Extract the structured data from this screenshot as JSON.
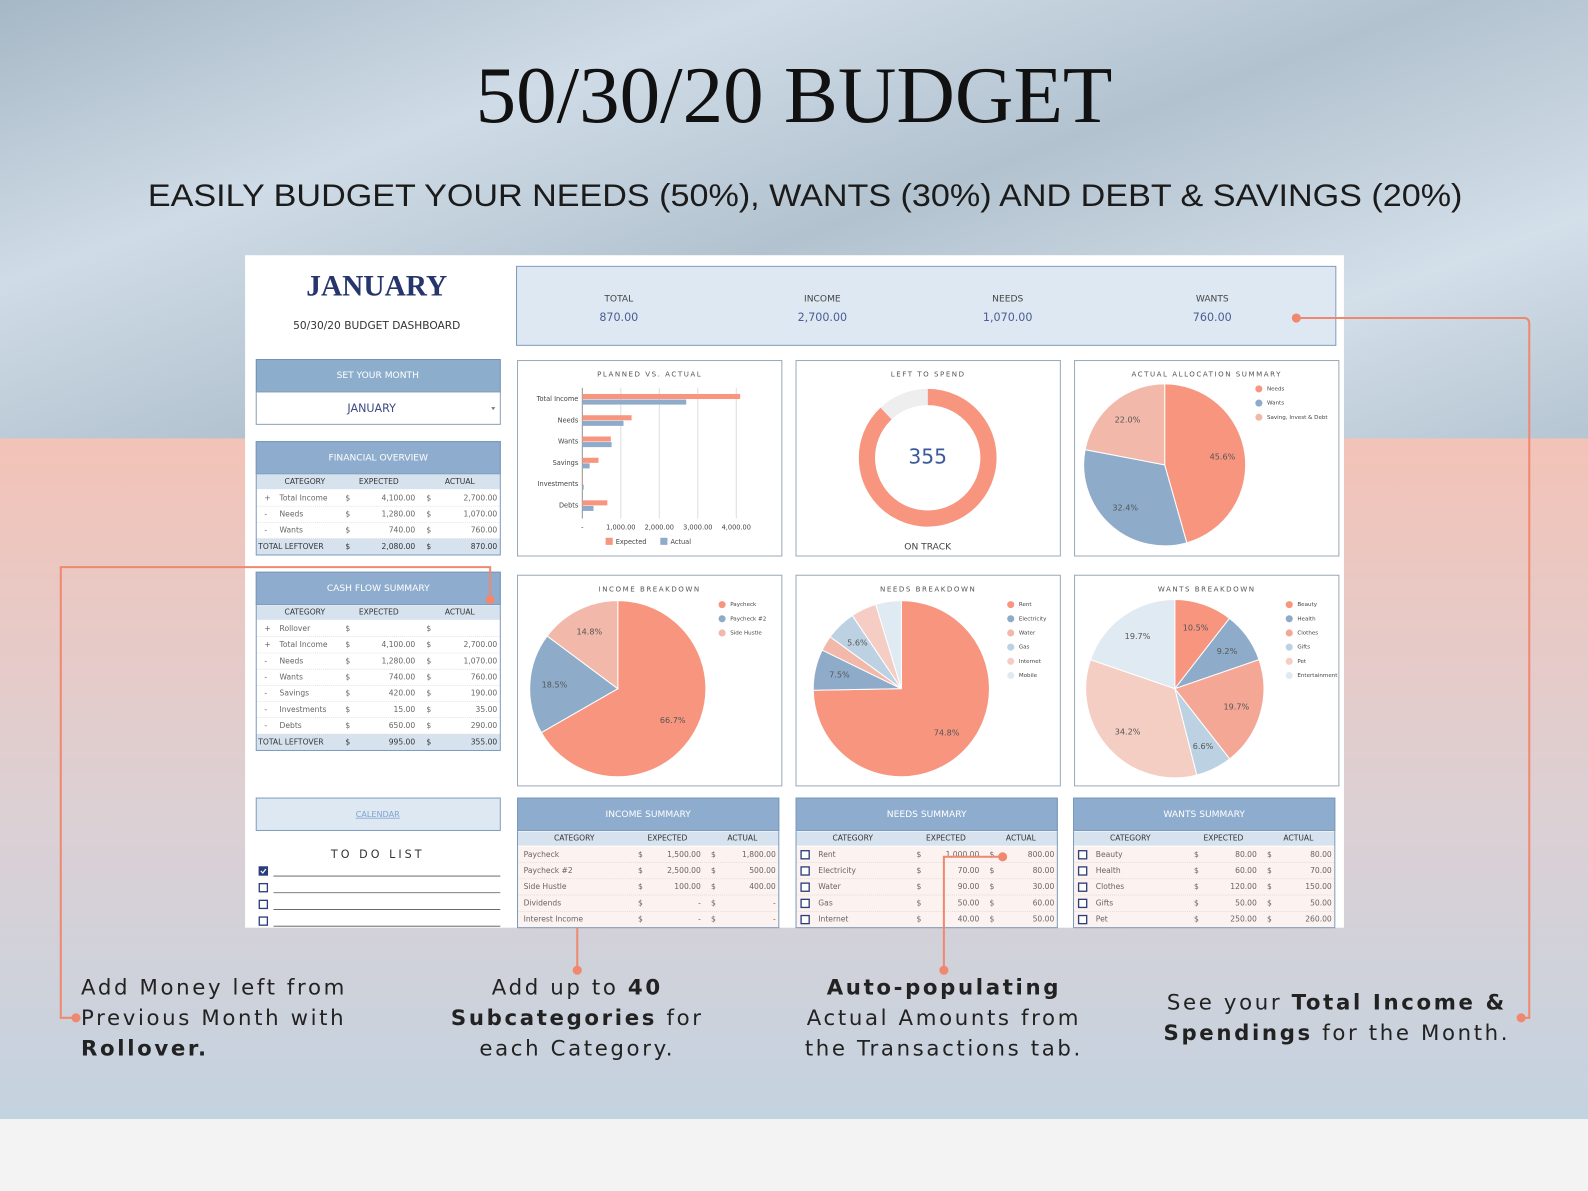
{
  "header": {
    "title": "50/30/20 BUDGET",
    "subtitle": "EASILY BUDGET YOUR NEEDS (50%), WANTS (30%) AND DEBT & SAVINGS (20%)"
  },
  "dashboard": {
    "month_title": "JANUARY",
    "subtitle": "50/30/20 BUDGET DASHBOARD",
    "set_month": {
      "title": "SET YOUR MONTH",
      "value": "JANUARY"
    },
    "kpis": [
      {
        "label": "TOTAL",
        "value": "870.00"
      },
      {
        "label": "INCOME",
        "value": "2,700.00"
      },
      {
        "label": "NEEDS",
        "value": "1,070.00"
      },
      {
        "label": "WANTS",
        "value": "760.00"
      }
    ],
    "financial_overview": {
      "title": "FINANCIAL OVERVIEW",
      "columns": [
        "CATEGORY",
        "EXPECTED",
        "ACTUAL"
      ],
      "rows": [
        {
          "sign": "+",
          "category": "Total Income",
          "exp_cur": "$",
          "expected": "4,100.00",
          "act_cur": "$",
          "actual": "2,700.00"
        },
        {
          "sign": "-",
          "category": "Needs",
          "exp_cur": "$",
          "expected": "1,280.00",
          "act_cur": "$",
          "actual": "1,070.00"
        },
        {
          "sign": "-",
          "category": "Wants",
          "exp_cur": "$",
          "expected": "740.00",
          "act_cur": "$",
          "actual": "760.00"
        }
      ],
      "total": {
        "label": "TOTAL LEFTOVER",
        "exp_cur": "$",
        "expected": "2,080.00",
        "act_cur": "$",
        "actual": "870.00"
      }
    },
    "cash_flow_summary": {
      "title": "CASH FLOW SUMMARY",
      "columns": [
        "CATEGORY",
        "EXPECTED",
        "ACTUAL"
      ],
      "rows": [
        {
          "sign": "+",
          "category": "Rollover",
          "exp_cur": "$",
          "act_cur": "$"
        },
        {
          "sign": "+",
          "category": "Total Income",
          "exp_cur": "$",
          "expected": "4,100.00",
          "act_cur": "$",
          "actual": "2,700.00"
        },
        {
          "sign": "-",
          "category": "Needs",
          "exp_cur": "$",
          "expected": "1,280.00",
          "act_cur": "$",
          "actual": "1,070.00"
        },
        {
          "sign": "-",
          "category": "Wants",
          "exp_cur": "$",
          "expected": "740.00",
          "act_cur": "$",
          "actual": "760.00"
        },
        {
          "sign": "-",
          "category": "Savings",
          "exp_cur": "$",
          "expected": "420.00",
          "act_cur": "$",
          "actual": "190.00"
        },
        {
          "sign": "-",
          "category": "Investments",
          "exp_cur": "$",
          "expected": "15.00",
          "act_cur": "$",
          "actual": "35.00"
        },
        {
          "sign": "-",
          "category": "Debts",
          "exp_cur": "$",
          "expected": "650.00",
          "act_cur": "$",
          "actual": "290.00"
        }
      ],
      "total": {
        "label": "TOTAL LEFTOVER",
        "exp_cur": "$",
        "expected": "995.00",
        "act_cur": "$",
        "actual": "355.00"
      }
    },
    "calendar": "CALENDAR",
    "todo": {
      "title": "TO DO LIST",
      "checked": [
        true,
        false,
        false,
        false
      ]
    },
    "summaries": [
      {
        "title": "INCOME SUMMARY",
        "columns": [
          "CATEGORY",
          "EXPECTED",
          "ACTUAL"
        ],
        "checkboxes": false,
        "rows": [
          {
            "category": "Paycheck",
            "exp_cur": "$",
            "expected": "1,500.00",
            "act_cur": "$",
            "actual": "1,800.00"
          },
          {
            "category": "Paycheck #2",
            "exp_cur": "$",
            "expected": "2,500.00",
            "act_cur": "$",
            "actual": "500.00"
          },
          {
            "category": "Side Hustle",
            "exp_cur": "$",
            "expected": "100.00",
            "act_cur": "$",
            "actual": "400.00"
          },
          {
            "category": "Dividends",
            "exp_cur": "$",
            "expected": "-",
            "act_cur": "$",
            "actual": "-"
          },
          {
            "category": "Interest Income",
            "exp_cur": "$",
            "expected": "-",
            "act_cur": "$",
            "actual": "-"
          }
        ]
      },
      {
        "title": "NEEDS SUMMARY",
        "columns": [
          "CATEGORY",
          "EXPECTED",
          "ACTUAL"
        ],
        "checkboxes": true,
        "rows": [
          {
            "category": "Rent",
            "exp_cur": "$",
            "expected": "1,000.00",
            "act_cur": "$",
            "actual": "800.00"
          },
          {
            "category": "Electricity",
            "exp_cur": "$",
            "expected": "70.00",
            "act_cur": "$",
            "actual": "80.00"
          },
          {
            "category": "Water",
            "exp_cur": "$",
            "expected": "90.00",
            "act_cur": "$",
            "actual": "30.00"
          },
          {
            "category": "Gas",
            "exp_cur": "$",
            "expected": "50.00",
            "act_cur": "$",
            "actual": "60.00"
          },
          {
            "category": "Internet",
            "exp_cur": "$",
            "expected": "40.00",
            "act_cur": "$",
            "actual": "50.00"
          }
        ]
      },
      {
        "title": "WANTS SUMMARY",
        "columns": [
          "CATEGORY",
          "EXPECTED",
          "ACTUAL"
        ],
        "checkboxes": true,
        "rows": [
          {
            "category": "Beauty",
            "exp_cur": "$",
            "expected": "80.00",
            "act_cur": "$",
            "actual": "80.00"
          },
          {
            "category": "Health",
            "exp_cur": "$",
            "expected": "60.00",
            "act_cur": "$",
            "actual": "70.00"
          },
          {
            "category": "Clothes",
            "exp_cur": "$",
            "expected": "120.00",
            "act_cur": "$",
            "actual": "150.00"
          },
          {
            "category": "Gifts",
            "exp_cur": "$",
            "expected": "50.00",
            "act_cur": "$",
            "actual": "50.00"
          },
          {
            "category": "Pet",
            "exp_cur": "$",
            "expected": "250.00",
            "act_cur": "$",
            "actual": "260.00"
          }
        ]
      }
    ]
  },
  "charts": [
    {
      "type": "bar",
      "title": "PLANNED VS. ACTUAL",
      "categories": [
        "Total Income",
        "Needs",
        "Wants",
        "Savings",
        "Investments",
        "Debts"
      ],
      "series": [
        {
          "name": "Expected",
          "color": "#f7957f",
          "values": [
            4100,
            1280,
            740,
            420,
            15,
            650
          ]
        },
        {
          "name": "Actual",
          "color": "#8eacca",
          "values": [
            2700,
            1070,
            760,
            190,
            35,
            290
          ]
        }
      ],
      "xlim": [
        0,
        4500
      ],
      "xticks": [
        {
          "value": 0,
          "label": "-"
        },
        {
          "value": 1000,
          "label": "1,000.00"
        },
        {
          "value": 2000,
          "label": "2,000.00"
        },
        {
          "value": 3000,
          "label": "3,000.00"
        },
        {
          "value": 4000,
          "label": "4,000.00"
        }
      ],
      "grid": true
    },
    {
      "type": "donut",
      "title": "LEFT TO SPEND",
      "center_value": 355,
      "status": "ON TRACK",
      "values": [
        88,
        12
      ],
      "colors": [
        "#f7957f",
        "#eeeeee"
      ]
    },
    {
      "type": "pie",
      "title": "ACTUAL ALLOCATION SUMMARY",
      "categories": [
        "Needs",
        "Wants",
        "Saving, Invest & Debt"
      ],
      "values": [
        45.6,
        32.4,
        22.0
      ],
      "value_labels": [
        "45.6%",
        "32.4%",
        "22.0%"
      ],
      "colors": [
        "#f7957f",
        "#8eacca",
        "#f2b8aa"
      ]
    },
    {
      "type": "pie",
      "title": "INCOME BREAKDOWN",
      "categories": [
        "Paycheck",
        "Paycheck #2",
        "Side Hustle"
      ],
      "values": [
        66.7,
        18.5,
        14.8
      ],
      "value_labels": [
        "66.7%",
        "18.5%",
        "14.8%"
      ],
      "colors": [
        "#f7957f",
        "#8eacca",
        "#f2b8aa"
      ]
    },
    {
      "type": "pie",
      "title": "NEEDS BREAKDOWN",
      "categories": [
        "Rent",
        "Electricity",
        "Water",
        "Gas",
        "Internet",
        "Mobile"
      ],
      "values": [
        74.8,
        7.5,
        2.8,
        5.6,
        4.7,
        4.7
      ],
      "value_labels": [
        "74.8%",
        "7.5%",
        null,
        "5.6%",
        null,
        null
      ],
      "colors": [
        "#f7957f",
        "#8eacca",
        "#f2b8aa",
        "#bcd2e3",
        "#f5cdc4",
        "#dfeaf3"
      ]
    },
    {
      "type": "pie",
      "title": "WANTS BREAKDOWN",
      "categories": [
        "Beauty",
        "Health",
        "Clothes",
        "Gifts",
        "Pet",
        "Entertainment"
      ],
      "values": [
        10.5,
        9.2,
        19.7,
        6.6,
        34.2,
        19.7
      ],
      "value_labels": [
        "10.5%",
        "9.2%",
        "19.7%",
        "6.6%",
        "34.2%",
        "19.7%"
      ],
      "colors": [
        "#f7957f",
        "#8eacca",
        "#f5a796",
        "#bcd2e3",
        "#f4cdc3",
        "#dfeaf3"
      ]
    }
  ],
  "callouts": [
    {
      "lines": [
        [
          {
            "text": "Add Money left from"
          }
        ],
        [
          {
            "text": "Previous Month with"
          }
        ],
        [
          {
            "text": "Rollover.",
            "bold": true
          }
        ]
      ]
    },
    {
      "lines": [
        [
          {
            "text": "Add up to "
          },
          {
            "text": "40",
            "bold": true
          }
        ],
        [
          {
            "text": "Subcategories",
            "bold": true
          },
          {
            "text": " for"
          }
        ],
        [
          {
            "text": "each Category."
          }
        ]
      ]
    },
    {
      "lines": [
        [
          {
            "text": "Auto-populating",
            "bold": true
          }
        ],
        [
          {
            "text": "Actual Amounts from"
          }
        ],
        [
          {
            "text": "the Transactions tab."
          }
        ]
      ]
    },
    {
      "lines": [
        [
          {
            "text": "See your "
          },
          {
            "text": "Total Income &",
            "bold": true
          }
        ],
        [
          {
            "text": "Spendings",
            "bold": true
          },
          {
            "text": " for the Month."
          }
        ]
      ]
    }
  ]
}
